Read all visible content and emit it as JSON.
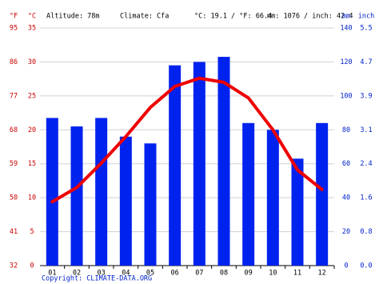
{
  "chart_data": {
    "type": "combo",
    "header": {
      "altitude": "Altitude: 78m",
      "climate": "Climate: Cfa",
      "temperature_summary": "°C: 19.1 / °F: 66.4",
      "precipitation_summary": "mm: 1076 / inch: 42.4"
    },
    "copyright": "Copyright: CLIMATE-DATA.ORG",
    "categories": [
      "01",
      "02",
      "03",
      "04",
      "05",
      "06",
      "07",
      "08",
      "09",
      "10",
      "11",
      "12"
    ],
    "series": [
      {
        "type": "bar",
        "axis": "y2",
        "color": "#0022ee",
        "values": [
          87,
          82,
          87,
          76,
          72,
          118,
          120,
          123,
          84,
          80,
          63,
          84
        ]
      },
      {
        "type": "line",
        "axis": "y",
        "color": "#ee0000",
        "values": [
          9.4,
          11.5,
          15.1,
          19.0,
          23.3,
          26.4,
          27.6,
          27.0,
          24.7,
          20.0,
          14.1,
          11.2
        ]
      }
    ],
    "ylabel": "°C",
    "ylim": [
      0,
      35
    ],
    "yticks": [
      0,
      5,
      10,
      15,
      20,
      25,
      30,
      35
    ],
    "y2label": "mm",
    "y2lim": [
      0,
      140
    ],
    "y2ticks": [
      0,
      20,
      40,
      60,
      80,
      100,
      120,
      140
    ],
    "fahrenheit_axis": {
      "label": "°F",
      "lim": [
        32,
        95
      ],
      "ticks": [
        32,
        41,
        50,
        59,
        68,
        77,
        86,
        95
      ]
    },
    "inch_axis": {
      "label": "inch",
      "lim": [
        0,
        5.512
      ],
      "ticks": [
        {
          "value": 0,
          "label": "0.0"
        },
        {
          "value": 0.787,
          "label": "0.8"
        },
        {
          "value": 1.575,
          "label": "1.6"
        },
        {
          "value": 2.362,
          "label": "2.4"
        },
        {
          "value": 3.15,
          "label": "3.1"
        },
        {
          "value": 3.937,
          "label": "3.9"
        },
        {
          "value": 4.724,
          "label": "4.7"
        },
        {
          "value": 5.512,
          "label": "5.5"
        }
      ]
    },
    "grid": true
  }
}
